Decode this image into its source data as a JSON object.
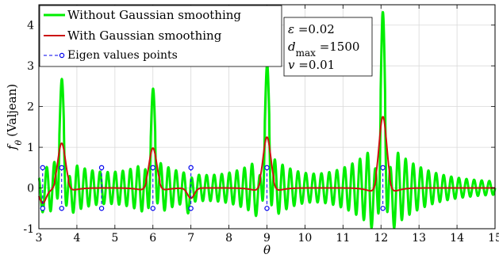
{
  "chart_data": {
    "type": "line",
    "xlabel": "θ",
    "ylabel": "f_θ (Valjean)",
    "xlim": [
      3,
      15
    ],
    "ylim": [
      -1,
      4.5
    ],
    "xticks": [
      "3",
      "4",
      "5",
      "6",
      "7",
      "8",
      "9",
      "10",
      "11",
      "12",
      "13",
      "14",
      "15"
    ],
    "yticks": [
      "-1",
      "0",
      "1",
      "2",
      "3",
      "4"
    ],
    "grid": true,
    "legend_position": "top-left",
    "series": [
      {
        "name": "Without Gaussian smoothing",
        "color": "#00ee00",
        "peaks": [
          {
            "x": 3.6,
            "y": 2.62
          },
          {
            "x": 6.0,
            "y": 2.35
          },
          {
            "x": 9.0,
            "y": 3.0
          },
          {
            "x": 12.05,
            "y": 4.2
          }
        ],
        "troughs": [
          {
            "x": 3.05,
            "y": -0.55
          },
          {
            "x": 3.8,
            "y": -0.6
          },
          {
            "x": 5.85,
            "y": -0.55
          },
          {
            "x": 6.95,
            "y": -0.6
          },
          {
            "x": 8.8,
            "y": -0.7
          },
          {
            "x": 11.85,
            "y": -0.95
          },
          {
            "x": 12.25,
            "y": -0.9
          }
        ]
      },
      {
        "name": "With Gaussian smoothing",
        "color": "#cc1111",
        "peaks": [
          {
            "x": 3.6,
            "y": 1.1
          },
          {
            "x": 6.0,
            "y": 0.98
          },
          {
            "x": 9.0,
            "y": 1.25
          },
          {
            "x": 12.05,
            "y": 1.75
          }
        ],
        "troughs": [
          {
            "x": 3.1,
            "y": -0.35
          },
          {
            "x": 7.0,
            "y": -0.25
          }
        ]
      },
      {
        "name": "Eigen values points",
        "color": "#0000ee",
        "x": [
          3.1,
          3.6,
          4.65,
          6.0,
          7.0,
          9.0,
          12.05
        ],
        "y_top": 0.5,
        "y_bottom": -0.5
      }
    ],
    "annotation": {
      "lines": [
        {
          "sym": "ε",
          "sub": "",
          "rest": " =0.02"
        },
        {
          "sym": "d",
          "sub": "max",
          "rest": " =1500"
        },
        {
          "sym": "v",
          "sub": "",
          "rest": " =0.01"
        }
      ]
    }
  },
  "legend": {
    "green": "Without Gaussian smoothing",
    "red": "With Gaussian smoothing",
    "blue": "Eigen values points"
  },
  "axis": {
    "xlabel": "θ",
    "ylabel_sym": "f",
    "ylabel_sub": "θ",
    "ylabel_rest": "(Valjean)"
  }
}
